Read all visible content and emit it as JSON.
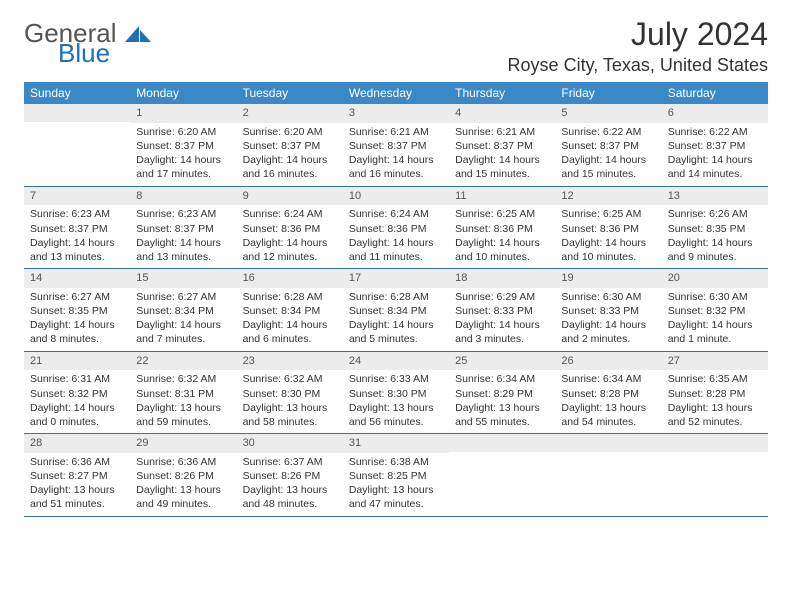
{
  "logo": {
    "text1": "General",
    "text2": "Blue"
  },
  "title": "July 2024",
  "location": "Royse City, Texas, United States",
  "colors": {
    "header_bg": "#3a88c6",
    "header_text": "#ffffff",
    "daynum_bg": "#ececec",
    "border": "#3a6fa0",
    "logo_blue": "#1d70b8",
    "body_text": "#333333"
  },
  "dow": [
    "Sunday",
    "Monday",
    "Tuesday",
    "Wednesday",
    "Thursday",
    "Friday",
    "Saturday"
  ],
  "weeks": [
    [
      {
        "n": "",
        "sr": "",
        "ss": "",
        "dl": ""
      },
      {
        "n": "1",
        "sr": "Sunrise: 6:20 AM",
        "ss": "Sunset: 8:37 PM",
        "dl": "Daylight: 14 hours and 17 minutes."
      },
      {
        "n": "2",
        "sr": "Sunrise: 6:20 AM",
        "ss": "Sunset: 8:37 PM",
        "dl": "Daylight: 14 hours and 16 minutes."
      },
      {
        "n": "3",
        "sr": "Sunrise: 6:21 AM",
        "ss": "Sunset: 8:37 PM",
        "dl": "Daylight: 14 hours and 16 minutes."
      },
      {
        "n": "4",
        "sr": "Sunrise: 6:21 AM",
        "ss": "Sunset: 8:37 PM",
        "dl": "Daylight: 14 hours and 15 minutes."
      },
      {
        "n": "5",
        "sr": "Sunrise: 6:22 AM",
        "ss": "Sunset: 8:37 PM",
        "dl": "Daylight: 14 hours and 15 minutes."
      },
      {
        "n": "6",
        "sr": "Sunrise: 6:22 AM",
        "ss": "Sunset: 8:37 PM",
        "dl": "Daylight: 14 hours and 14 minutes."
      }
    ],
    [
      {
        "n": "7",
        "sr": "Sunrise: 6:23 AM",
        "ss": "Sunset: 8:37 PM",
        "dl": "Daylight: 14 hours and 13 minutes."
      },
      {
        "n": "8",
        "sr": "Sunrise: 6:23 AM",
        "ss": "Sunset: 8:37 PM",
        "dl": "Daylight: 14 hours and 13 minutes."
      },
      {
        "n": "9",
        "sr": "Sunrise: 6:24 AM",
        "ss": "Sunset: 8:36 PM",
        "dl": "Daylight: 14 hours and 12 minutes."
      },
      {
        "n": "10",
        "sr": "Sunrise: 6:24 AM",
        "ss": "Sunset: 8:36 PM",
        "dl": "Daylight: 14 hours and 11 minutes."
      },
      {
        "n": "11",
        "sr": "Sunrise: 6:25 AM",
        "ss": "Sunset: 8:36 PM",
        "dl": "Daylight: 14 hours and 10 minutes."
      },
      {
        "n": "12",
        "sr": "Sunrise: 6:25 AM",
        "ss": "Sunset: 8:36 PM",
        "dl": "Daylight: 14 hours and 10 minutes."
      },
      {
        "n": "13",
        "sr": "Sunrise: 6:26 AM",
        "ss": "Sunset: 8:35 PM",
        "dl": "Daylight: 14 hours and 9 minutes."
      }
    ],
    [
      {
        "n": "14",
        "sr": "Sunrise: 6:27 AM",
        "ss": "Sunset: 8:35 PM",
        "dl": "Daylight: 14 hours and 8 minutes."
      },
      {
        "n": "15",
        "sr": "Sunrise: 6:27 AM",
        "ss": "Sunset: 8:34 PM",
        "dl": "Daylight: 14 hours and 7 minutes."
      },
      {
        "n": "16",
        "sr": "Sunrise: 6:28 AM",
        "ss": "Sunset: 8:34 PM",
        "dl": "Daylight: 14 hours and 6 minutes."
      },
      {
        "n": "17",
        "sr": "Sunrise: 6:28 AM",
        "ss": "Sunset: 8:34 PM",
        "dl": "Daylight: 14 hours and 5 minutes."
      },
      {
        "n": "18",
        "sr": "Sunrise: 6:29 AM",
        "ss": "Sunset: 8:33 PM",
        "dl": "Daylight: 14 hours and 3 minutes."
      },
      {
        "n": "19",
        "sr": "Sunrise: 6:30 AM",
        "ss": "Sunset: 8:33 PM",
        "dl": "Daylight: 14 hours and 2 minutes."
      },
      {
        "n": "20",
        "sr": "Sunrise: 6:30 AM",
        "ss": "Sunset: 8:32 PM",
        "dl": "Daylight: 14 hours and 1 minute."
      }
    ],
    [
      {
        "n": "21",
        "sr": "Sunrise: 6:31 AM",
        "ss": "Sunset: 8:32 PM",
        "dl": "Daylight: 14 hours and 0 minutes."
      },
      {
        "n": "22",
        "sr": "Sunrise: 6:32 AM",
        "ss": "Sunset: 8:31 PM",
        "dl": "Daylight: 13 hours and 59 minutes."
      },
      {
        "n": "23",
        "sr": "Sunrise: 6:32 AM",
        "ss": "Sunset: 8:30 PM",
        "dl": "Daylight: 13 hours and 58 minutes."
      },
      {
        "n": "24",
        "sr": "Sunrise: 6:33 AM",
        "ss": "Sunset: 8:30 PM",
        "dl": "Daylight: 13 hours and 56 minutes."
      },
      {
        "n": "25",
        "sr": "Sunrise: 6:34 AM",
        "ss": "Sunset: 8:29 PM",
        "dl": "Daylight: 13 hours and 55 minutes."
      },
      {
        "n": "26",
        "sr": "Sunrise: 6:34 AM",
        "ss": "Sunset: 8:28 PM",
        "dl": "Daylight: 13 hours and 54 minutes."
      },
      {
        "n": "27",
        "sr": "Sunrise: 6:35 AM",
        "ss": "Sunset: 8:28 PM",
        "dl": "Daylight: 13 hours and 52 minutes."
      }
    ],
    [
      {
        "n": "28",
        "sr": "Sunrise: 6:36 AM",
        "ss": "Sunset: 8:27 PM",
        "dl": "Daylight: 13 hours and 51 minutes."
      },
      {
        "n": "29",
        "sr": "Sunrise: 6:36 AM",
        "ss": "Sunset: 8:26 PM",
        "dl": "Daylight: 13 hours and 49 minutes."
      },
      {
        "n": "30",
        "sr": "Sunrise: 6:37 AM",
        "ss": "Sunset: 8:26 PM",
        "dl": "Daylight: 13 hours and 48 minutes."
      },
      {
        "n": "31",
        "sr": "Sunrise: 6:38 AM",
        "ss": "Sunset: 8:25 PM",
        "dl": "Daylight: 13 hours and 47 minutes."
      },
      {
        "n": "",
        "sr": "",
        "ss": "",
        "dl": ""
      },
      {
        "n": "",
        "sr": "",
        "ss": "",
        "dl": ""
      },
      {
        "n": "",
        "sr": "",
        "ss": "",
        "dl": ""
      }
    ]
  ]
}
